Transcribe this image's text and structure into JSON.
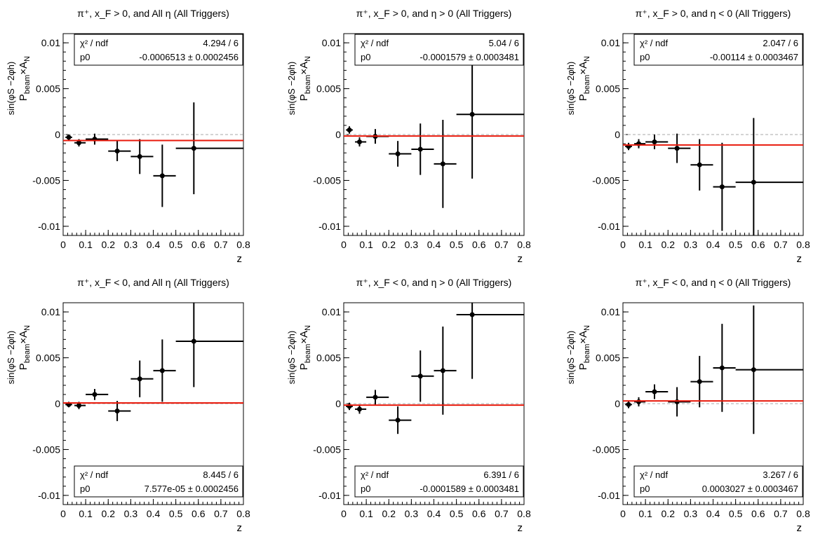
{
  "axis_texts": {
    "x_label": "z",
    "y_label": "P_beam × A_N^sin(φ_S − 2φ_h)",
    "chi2_label": "χ² / ndf",
    "p0_label": "p0"
  },
  "chart_data": [
    {
      "type": "scatter",
      "title": "π⁺, x_F > 0, and All η (All Triggers)",
      "xlabel": "z",
      "ylabel": "P_beam × A_N^sin(φ_S − 2φ_h)",
      "xlim": [
        0,
        0.8
      ],
      "ylim": [
        -0.011,
        0.011
      ],
      "xticks": [
        0,
        0.1,
        0.2,
        0.3,
        0.4,
        0.5,
        0.6,
        0.7,
        0.8
      ],
      "yticks": [
        -0.01,
        -0.005,
        0,
        0.005,
        0.01
      ],
      "stats_position": "top",
      "chi2": "4.294 / 6",
      "p0": "-0.0006513 ± 0.0002456",
      "fit": -0.00065,
      "points": [
        {
          "x": 0.025,
          "xlo": 0.01,
          "xhi": 0.04,
          "y": -0.0003,
          "err": 0.0003
        },
        {
          "x": 0.07,
          "xlo": 0.05,
          "xhi": 0.1,
          "y": -0.0009,
          "err": 0.0004
        },
        {
          "x": 0.14,
          "xlo": 0.1,
          "xhi": 0.2,
          "y": -0.0005,
          "err": 0.0006
        },
        {
          "x": 0.24,
          "xlo": 0.2,
          "xhi": 0.3,
          "y": -0.0018,
          "err": 0.0011
        },
        {
          "x": 0.34,
          "xlo": 0.3,
          "xhi": 0.4,
          "y": -0.0024,
          "err": 0.0019
        },
        {
          "x": 0.44,
          "xlo": 0.4,
          "xhi": 0.5,
          "y": -0.0045,
          "err": 0.0034
        },
        {
          "x": 0.58,
          "xlo": 0.5,
          "xhi": 0.8,
          "y": -0.0015,
          "err": 0.005
        }
      ]
    },
    {
      "type": "scatter",
      "title": "π⁺, x_F > 0, and η > 0 (All Triggers)",
      "xlabel": "z",
      "ylabel": "P_beam × A_N^sin(φ_S − 2φ_h)",
      "xlim": [
        0,
        0.8
      ],
      "ylim": [
        -0.011,
        0.011
      ],
      "xticks": [
        0,
        0.1,
        0.2,
        0.3,
        0.4,
        0.5,
        0.6,
        0.7,
        0.8
      ],
      "yticks": [
        -0.01,
        -0.005,
        0,
        0.005,
        0.01
      ],
      "stats_position": "top",
      "chi2": "5.04 / 6",
      "p0": "-0.0001579 ± 0.0003481",
      "fit": -0.00016,
      "points": [
        {
          "x": 0.025,
          "xlo": 0.01,
          "xhi": 0.04,
          "y": 0.0005,
          "err": 0.0004
        },
        {
          "x": 0.07,
          "xlo": 0.05,
          "xhi": 0.1,
          "y": -0.0008,
          "err": 0.0005
        },
        {
          "x": 0.14,
          "xlo": 0.1,
          "xhi": 0.2,
          "y": -0.0002,
          "err": 0.0008
        },
        {
          "x": 0.24,
          "xlo": 0.2,
          "xhi": 0.3,
          "y": -0.0021,
          "err": 0.0014
        },
        {
          "x": 0.34,
          "xlo": 0.3,
          "xhi": 0.4,
          "y": -0.0016,
          "err": 0.0028
        },
        {
          "x": 0.44,
          "xlo": 0.4,
          "xhi": 0.5,
          "y": -0.0032,
          "err": 0.0048
        },
        {
          "x": 0.57,
          "xlo": 0.5,
          "xhi": 0.8,
          "y": 0.0022,
          "err": 0.007
        }
      ]
    },
    {
      "type": "scatter",
      "title": "π⁺, x_F > 0, and η < 0 (All Triggers)",
      "xlabel": "z",
      "ylabel": "P_beam × A_N^sin(φ_S − 2φ_h)",
      "xlim": [
        0,
        0.8
      ],
      "ylim": [
        -0.011,
        0.011
      ],
      "xticks": [
        0,
        0.1,
        0.2,
        0.3,
        0.4,
        0.5,
        0.6,
        0.7,
        0.8
      ],
      "yticks": [
        -0.01,
        -0.005,
        0,
        0.005,
        0.01
      ],
      "stats_position": "top",
      "chi2": "2.047 / 6",
      "p0": "-0.00114 ± 0.0003467",
      "fit": -0.00114,
      "points": [
        {
          "x": 0.025,
          "xlo": 0.01,
          "xhi": 0.04,
          "y": -0.0013,
          "err": 0.0004
        },
        {
          "x": 0.07,
          "xlo": 0.05,
          "xhi": 0.1,
          "y": -0.001,
          "err": 0.0005
        },
        {
          "x": 0.14,
          "xlo": 0.1,
          "xhi": 0.2,
          "y": -0.0008,
          "err": 0.0008
        },
        {
          "x": 0.24,
          "xlo": 0.2,
          "xhi": 0.3,
          "y": -0.0015,
          "err": 0.0016
        },
        {
          "x": 0.34,
          "xlo": 0.3,
          "xhi": 0.4,
          "y": -0.0033,
          "err": 0.0028
        },
        {
          "x": 0.44,
          "xlo": 0.4,
          "xhi": 0.5,
          "y": -0.0057,
          "err": 0.0048
        },
        {
          "x": 0.58,
          "xlo": 0.5,
          "xhi": 0.8,
          "y": -0.0052,
          "err": 0.007
        }
      ]
    },
    {
      "type": "scatter",
      "title": "π⁺, x_F < 0, and All η (All Triggers)",
      "xlabel": "z",
      "ylabel": "P_beam × A_N^sin(φ_S − 2φ_h)",
      "xlim": [
        0,
        0.8
      ],
      "ylim": [
        -0.011,
        0.011
      ],
      "xticks": [
        0,
        0.1,
        0.2,
        0.3,
        0.4,
        0.5,
        0.6,
        0.7,
        0.8
      ],
      "yticks": [
        -0.01,
        -0.005,
        0,
        0.005,
        0.01
      ],
      "stats_position": "bottom",
      "chi2": "8.445 / 6",
      "p0": "7.577e-05 ± 0.0002456",
      "fit": 8e-05,
      "points": [
        {
          "x": 0.025,
          "xlo": 0.01,
          "xhi": 0.04,
          "y": -0.0001,
          "err": 0.0003
        },
        {
          "x": 0.07,
          "xlo": 0.05,
          "xhi": 0.1,
          "y": -0.0002,
          "err": 0.0004
        },
        {
          "x": 0.14,
          "xlo": 0.1,
          "xhi": 0.2,
          "y": 0.001,
          "err": 0.0006
        },
        {
          "x": 0.24,
          "xlo": 0.2,
          "xhi": 0.3,
          "y": -0.0008,
          "err": 0.0011
        },
        {
          "x": 0.34,
          "xlo": 0.3,
          "xhi": 0.4,
          "y": 0.0027,
          "err": 0.002
        },
        {
          "x": 0.44,
          "xlo": 0.4,
          "xhi": 0.5,
          "y": 0.0036,
          "err": 0.0034
        },
        {
          "x": 0.58,
          "xlo": 0.5,
          "xhi": 0.8,
          "y": 0.0068,
          "err": 0.005
        }
      ]
    },
    {
      "type": "scatter",
      "title": "π⁺, x_F < 0, and η > 0 (All Triggers)",
      "xlabel": "z",
      "ylabel": "P_beam × A_N^sin(φ_S − 2φ_h)",
      "xlim": [
        0,
        0.8
      ],
      "ylim": [
        -0.011,
        0.011
      ],
      "xticks": [
        0,
        0.1,
        0.2,
        0.3,
        0.4,
        0.5,
        0.6,
        0.7,
        0.8
      ],
      "yticks": [
        -0.01,
        -0.005,
        0,
        0.005,
        0.01
      ],
      "stats_position": "bottom",
      "chi2": "6.391 / 6",
      "p0": "-0.0001589 ± 0.0003481",
      "fit": -0.00016,
      "points": [
        {
          "x": 0.025,
          "xlo": 0.01,
          "xhi": 0.04,
          "y": -0.0003,
          "err": 0.0004
        },
        {
          "x": 0.07,
          "xlo": 0.05,
          "xhi": 0.1,
          "y": -0.0006,
          "err": 0.0005
        },
        {
          "x": 0.14,
          "xlo": 0.1,
          "xhi": 0.2,
          "y": 0.0007,
          "err": 0.0008
        },
        {
          "x": 0.24,
          "xlo": 0.2,
          "xhi": 0.3,
          "y": -0.0018,
          "err": 0.0015
        },
        {
          "x": 0.34,
          "xlo": 0.3,
          "xhi": 0.4,
          "y": 0.003,
          "err": 0.0028
        },
        {
          "x": 0.44,
          "xlo": 0.4,
          "xhi": 0.5,
          "y": 0.0036,
          "err": 0.0048
        },
        {
          "x": 0.57,
          "xlo": 0.5,
          "xhi": 0.8,
          "y": 0.0097,
          "err": 0.007
        }
      ]
    },
    {
      "type": "scatter",
      "title": "π⁺, x_F < 0, and η < 0 (All Triggers)",
      "xlabel": "z",
      "ylabel": "P_beam × A_N^sin(φ_S − 2φ_h)",
      "xlim": [
        0,
        0.8
      ],
      "ylim": [
        -0.011,
        0.011
      ],
      "xticks": [
        0,
        0.1,
        0.2,
        0.3,
        0.4,
        0.5,
        0.6,
        0.7,
        0.8
      ],
      "yticks": [
        -0.01,
        -0.005,
        0,
        0.005,
        0.01
      ],
      "stats_position": "bottom",
      "chi2": "3.267 / 6",
      "p0": "0.0003027 ± 0.0003467",
      "fit": 0.0003,
      "points": [
        {
          "x": 0.025,
          "xlo": 0.01,
          "xhi": 0.04,
          "y": -0.0001,
          "err": 0.0004
        },
        {
          "x": 0.07,
          "xlo": 0.05,
          "xhi": 0.1,
          "y": 0.0002,
          "err": 0.0005
        },
        {
          "x": 0.14,
          "xlo": 0.1,
          "xhi": 0.2,
          "y": 0.0013,
          "err": 0.0008
        },
        {
          "x": 0.24,
          "xlo": 0.2,
          "xhi": 0.3,
          "y": 0.0002,
          "err": 0.0016
        },
        {
          "x": 0.34,
          "xlo": 0.3,
          "xhi": 0.4,
          "y": 0.0024,
          "err": 0.0028
        },
        {
          "x": 0.44,
          "xlo": 0.4,
          "xhi": 0.5,
          "y": 0.0039,
          "err": 0.0048
        },
        {
          "x": 0.58,
          "xlo": 0.5,
          "xhi": 0.8,
          "y": 0.0037,
          "err": 0.007
        }
      ]
    }
  ]
}
